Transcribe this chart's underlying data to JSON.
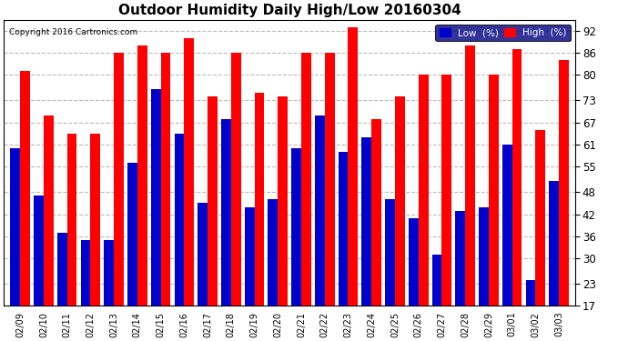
{
  "title": "Outdoor Humidity Daily High/Low 20160304",
  "copyright": "Copyright 2016 Cartronics.com",
  "dates": [
    "02/09",
    "02/10",
    "02/11",
    "02/12",
    "02/13",
    "02/14",
    "02/15",
    "02/16",
    "02/17",
    "02/18",
    "02/19",
    "02/20",
    "02/21",
    "02/22",
    "02/23",
    "02/24",
    "02/25",
    "02/26",
    "02/27",
    "02/28",
    "02/29",
    "03/01",
    "03/02",
    "03/03"
  ],
  "high": [
    81,
    69,
    64,
    64,
    86,
    88,
    86,
    90,
    74,
    86,
    75,
    74,
    86,
    86,
    93,
    68,
    74,
    80,
    80,
    88,
    80,
    87,
    65,
    84
  ],
  "low": [
    60,
    47,
    37,
    35,
    35,
    56,
    76,
    64,
    45,
    68,
    44,
    46,
    60,
    69,
    59,
    63,
    46,
    41,
    31,
    43,
    44,
    61,
    24,
    51
  ],
  "ymin": 17,
  "ylim": [
    17,
    95
  ],
  "yticks": [
    17,
    23,
    30,
    36,
    42,
    48,
    55,
    61,
    67,
    73,
    80,
    86,
    92
  ],
  "bar_width": 0.42,
  "high_color": "#ff0000",
  "low_color": "#0000cc",
  "bg_color": "#ffffff",
  "grid_color": "#bbbbbb",
  "title_fontsize": 11,
  "legend_low_label": "Low  (%)",
  "legend_high_label": "High  (%)"
}
